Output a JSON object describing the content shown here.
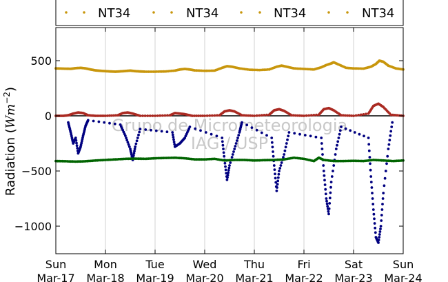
{
  "chart_data": {
    "type": "scatter",
    "title": "",
    "xlabel": "",
    "ylabel": "Radiation (Wm⁻²)",
    "ylabel_parts": {
      "prefix": "Radiation (",
      "italic": "Wm",
      "exponent": "−2",
      "suffix": ")"
    },
    "xlim": [
      0,
      7
    ],
    "ylim": [
      -1250,
      800
    ],
    "yticks": [
      500,
      0,
      -500,
      -1000
    ],
    "ytick_labels": [
      "500",
      "0",
      "−500",
      "−1000"
    ],
    "x_categories": [
      {
        "day": "Sun",
        "date": "Mar-17"
      },
      {
        "day": "Mon",
        "date": "Mar-18"
      },
      {
        "day": "Tue",
        "date": "Mar-19"
      },
      {
        "day": "Wed",
        "date": "Mar-20"
      },
      {
        "day": "Thu",
        "date": "Mar-21"
      },
      {
        "day": "Fri",
        "date": "Mar-22"
      },
      {
        "day": "Sat",
        "date": "Mar-23"
      },
      {
        "day": "Sun",
        "date": "Mar-24"
      }
    ],
    "grid": "vertical",
    "zero_line": true,
    "legend_placement": "top, outside plot",
    "legend": [
      "NT34",
      "NT34",
      "NT34",
      "NT34"
    ],
    "watermark": [
      "Grupo de Micrometeorologia",
      "IAG / USP"
    ],
    "series": [
      {
        "color": "#c8960c",
        "description": "upper series (around 400-500)",
        "points": [
          [
            0.0,
            430
          ],
          [
            0.15,
            428
          ],
          [
            0.3,
            426
          ],
          [
            0.4,
            432
          ],
          [
            0.5,
            435
          ],
          [
            0.6,
            430
          ],
          [
            0.7,
            420
          ],
          [
            0.8,
            412
          ],
          [
            0.9,
            408
          ],
          [
            1.0,
            405
          ],
          [
            1.1,
            402
          ],
          [
            1.2,
            400
          ],
          [
            1.3,
            403
          ],
          [
            1.4,
            406
          ],
          [
            1.5,
            410
          ],
          [
            1.6,
            405
          ],
          [
            1.7,
            402
          ],
          [
            1.8,
            400
          ],
          [
            2.0,
            400
          ],
          [
            2.2,
            402
          ],
          [
            2.4,
            410
          ],
          [
            2.5,
            420
          ],
          [
            2.6,
            425
          ],
          [
            2.7,
            420
          ],
          [
            2.8,
            412
          ],
          [
            3.0,
            408
          ],
          [
            3.2,
            410
          ],
          [
            3.35,
            435
          ],
          [
            3.45,
            450
          ],
          [
            3.55,
            445
          ],
          [
            3.7,
            430
          ],
          [
            3.9,
            418
          ],
          [
            4.1,
            415
          ],
          [
            4.3,
            420
          ],
          [
            4.45,
            445
          ],
          [
            4.55,
            455
          ],
          [
            4.65,
            445
          ],
          [
            4.8,
            430
          ],
          [
            5.0,
            425
          ],
          [
            5.2,
            420
          ],
          [
            5.35,
            440
          ],
          [
            5.45,
            460
          ],
          [
            5.55,
            475
          ],
          [
            5.6,
            485
          ],
          [
            5.7,
            465
          ],
          [
            5.85,
            435
          ],
          [
            6.0,
            430
          ],
          [
            6.2,
            428
          ],
          [
            6.35,
            445
          ],
          [
            6.45,
            470
          ],
          [
            6.52,
            500
          ],
          [
            6.6,
            490
          ],
          [
            6.7,
            455
          ],
          [
            6.85,
            430
          ],
          [
            7.0,
            420
          ]
        ]
      },
      {
        "color": "#aa2a22",
        "description": "near-zero series with daytime bumps",
        "points": [
          [
            0.0,
            0
          ],
          [
            0.15,
            0
          ],
          [
            0.25,
            5
          ],
          [
            0.35,
            20
          ],
          [
            0.45,
            30
          ],
          [
            0.55,
            25
          ],
          [
            0.65,
            5
          ],
          [
            0.8,
            0
          ],
          [
            1.0,
            0
          ],
          [
            1.25,
            5
          ],
          [
            1.35,
            25
          ],
          [
            1.45,
            30
          ],
          [
            1.55,
            20
          ],
          [
            1.7,
            0
          ],
          [
            2.0,
            0
          ],
          [
            2.3,
            5
          ],
          [
            2.4,
            25
          ],
          [
            2.5,
            20
          ],
          [
            2.6,
            15
          ],
          [
            2.75,
            0
          ],
          [
            3.0,
            0
          ],
          [
            3.3,
            5
          ],
          [
            3.4,
            40
          ],
          [
            3.5,
            50
          ],
          [
            3.6,
            40
          ],
          [
            3.75,
            5
          ],
          [
            4.0,
            0
          ],
          [
            4.3,
            10
          ],
          [
            4.4,
            50
          ],
          [
            4.5,
            60
          ],
          [
            4.6,
            45
          ],
          [
            4.75,
            5
          ],
          [
            5.0,
            0
          ],
          [
            5.3,
            10
          ],
          [
            5.4,
            60
          ],
          [
            5.5,
            70
          ],
          [
            5.6,
            50
          ],
          [
            5.75,
            5
          ],
          [
            6.0,
            0
          ],
          [
            6.3,
            20
          ],
          [
            6.4,
            90
          ],
          [
            6.5,
            110
          ],
          [
            6.6,
            80
          ],
          [
            6.75,
            10
          ],
          [
            7.0,
            0
          ]
        ]
      },
      {
        "color": "#000080",
        "description": "daytime negative dips",
        "points": [
          [
            0.25,
            -60
          ],
          [
            0.3,
            -150
          ],
          [
            0.35,
            -250
          ],
          [
            0.4,
            -200
          ],
          [
            0.45,
            -340
          ],
          [
            0.5,
            -280
          ],
          [
            0.55,
            -180
          ],
          [
            0.6,
            -90
          ],
          [
            0.65,
            -40
          ],
          [
            1.3,
            -80
          ],
          [
            1.4,
            -180
          ],
          [
            1.5,
            -300
          ],
          [
            1.55,
            -400
          ],
          [
            1.6,
            -280
          ],
          [
            1.7,
            -120
          ],
          [
            2.35,
            -150
          ],
          [
            2.4,
            -280
          ],
          [
            2.5,
            -250
          ],
          [
            2.6,
            -200
          ],
          [
            2.7,
            -100
          ],
          [
            3.35,
            -200
          ],
          [
            3.4,
            -400
          ],
          [
            3.45,
            -580
          ],
          [
            3.5,
            -450
          ],
          [
            3.6,
            -300
          ],
          [
            3.7,
            -150
          ],
          [
            3.75,
            -60
          ],
          [
            4.35,
            -200
          ],
          [
            4.4,
            -450
          ],
          [
            4.45,
            -680
          ],
          [
            4.5,
            -500
          ],
          [
            4.6,
            -350
          ],
          [
            4.7,
            -150
          ],
          [
            5.35,
            -200
          ],
          [
            5.4,
            -500
          ],
          [
            5.45,
            -750
          ],
          [
            5.5,
            -890
          ],
          [
            5.55,
            -600
          ],
          [
            5.65,
            -300
          ],
          [
            5.75,
            -100
          ],
          [
            6.3,
            -200
          ],
          [
            6.35,
            -550
          ],
          [
            6.4,
            -850
          ],
          [
            6.45,
            -1100
          ],
          [
            6.5,
            -1150
          ],
          [
            6.55,
            -1000
          ],
          [
            6.6,
            -700
          ],
          [
            6.7,
            -300
          ],
          [
            6.78,
            -60
          ]
        ]
      },
      {
        "color": "#006400",
        "description": "lower series (around -400)",
        "points": [
          [
            0.0,
            -410
          ],
          [
            0.2,
            -412
          ],
          [
            0.4,
            -415
          ],
          [
            0.6,
            -412
          ],
          [
            0.8,
            -405
          ],
          [
            1.0,
            -400
          ],
          [
            1.2,
            -395
          ],
          [
            1.4,
            -390
          ],
          [
            1.6,
            -388
          ],
          [
            1.8,
            -390
          ],
          [
            2.0,
            -385
          ],
          [
            2.2,
            -382
          ],
          [
            2.4,
            -380
          ],
          [
            2.6,
            -385
          ],
          [
            2.8,
            -395
          ],
          [
            3.0,
            -395
          ],
          [
            3.2,
            -390
          ],
          [
            3.4,
            -405
          ],
          [
            3.6,
            -400
          ],
          [
            3.8,
            -400
          ],
          [
            4.0,
            -405
          ],
          [
            4.2,
            -402
          ],
          [
            4.4,
            -400
          ],
          [
            4.6,
            -395
          ],
          [
            4.8,
            -380
          ],
          [
            5.0,
            -390
          ],
          [
            5.2,
            -410
          ],
          [
            5.3,
            -380
          ],
          [
            5.4,
            -400
          ],
          [
            5.6,
            -410
          ],
          [
            5.8,
            -410
          ],
          [
            6.0,
            -408
          ],
          [
            6.2,
            -410
          ],
          [
            6.4,
            -400
          ],
          [
            6.6,
            -405
          ],
          [
            6.8,
            -410
          ],
          [
            7.0,
            -405
          ]
        ]
      }
    ]
  }
}
